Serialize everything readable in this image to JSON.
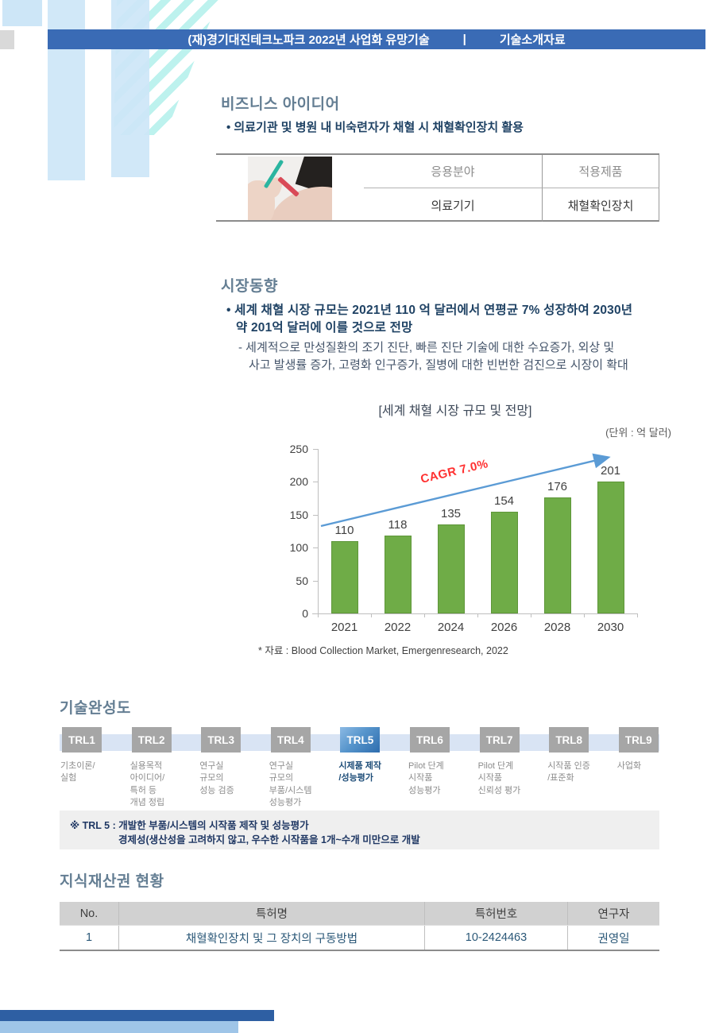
{
  "header": {
    "title": "(재)경기대진테크노파크 2022년 사업화 유망기술",
    "separator": "|",
    "subtitle": "기술소개자료"
  },
  "business_idea": {
    "section_title": "비즈니스 아이디어",
    "bullet": "• 의료기관 및 병원 내 비숙련자가 채혈 시 채혈확인장치 활용",
    "table": {
      "headers": [
        "응용분야",
        "적용제품"
      ],
      "row": [
        "의료기기",
        "채혈확인장치"
      ],
      "image": "blood-draw-photo"
    }
  },
  "market_trend": {
    "section_title": "시장동향",
    "bullet_lines": [
      "• 세계 채혈 시장 규모는 2021년 110 억 달러에서 연평균 7% 성장하여 2030년",
      "약 201억 달러에 이를 것으로 전망"
    ],
    "sub_lines": [
      "- 세계적으로 만성질환의 조기 진단, 빠른 진단 기술에 대한 수요증가, 외상 및",
      "사고 발생률 증가, 고령화 인구증가, 질병에 대한 빈번한 검진으로 시장이 확대"
    ]
  },
  "chart_data": {
    "type": "bar",
    "title": "[세계 채혈 시장 규모 및 전망]",
    "unit_label": "(단위 : 억 달러)",
    "categories": [
      "2021",
      "2022",
      "2024",
      "2026",
      "2028",
      "2030"
    ],
    "values": [
      110,
      118,
      135,
      154,
      176,
      201
    ],
    "ylim": [
      0,
      250
    ],
    "yticks": [
      0,
      50,
      100,
      150,
      200,
      250
    ],
    "annotation": "CAGR 7.0%",
    "source": "* 자료 : Blood Collection Market, Emergenresearch, 2022",
    "bar_color": "#6FAC47",
    "trend_arrow_color": "#5B9BD5",
    "annotation_color": "#FF3030",
    "grid": false,
    "legend": false
  },
  "trl": {
    "section_title": "기술완성도",
    "levels": [
      {
        "label": "TRL1",
        "desc": "기초이론/\n실험",
        "active": false
      },
      {
        "label": "TRL2",
        "desc": "실용목적\n아이디어/\n특허 등\n개념 정립",
        "active": false
      },
      {
        "label": "TRL3",
        "desc": "연구실\n규모의\n성능 검증",
        "active": false
      },
      {
        "label": "TRL4",
        "desc": "연구실\n규모의\n부품/시스템\n성능평가",
        "active": false
      },
      {
        "label": "TRL5",
        "desc": "시제품 제작\n/성능평가",
        "active": true
      },
      {
        "label": "TRL6",
        "desc": "Pilot 단계\n시작품\n성능평가",
        "active": false
      },
      {
        "label": "TRL7",
        "desc": "Pilot 단계\n시작품\n신뢰성 평가",
        "active": false
      },
      {
        "label": "TRL8",
        "desc": "시작품 인증\n/표준화",
        "active": false
      },
      {
        "label": "TRL9",
        "desc": "사업화",
        "active": false
      }
    ],
    "note_line1": "※ TRL 5  : 개발한 부품/시스템의 시작품 제작 및 성능평가",
    "note_line2": "경제성(생산성을 고려하지 않고, 우수한 시작품을 1개~수개 미만으로 개발"
  },
  "ip": {
    "section_title": "지식재산권 현황",
    "headers": [
      "No.",
      "특허명",
      "특허번호",
      "연구자"
    ],
    "rows": [
      [
        "1",
        "채혈확인장치 및 그 장치의 구동방법",
        "10-2424463",
        "권영일"
      ]
    ]
  }
}
